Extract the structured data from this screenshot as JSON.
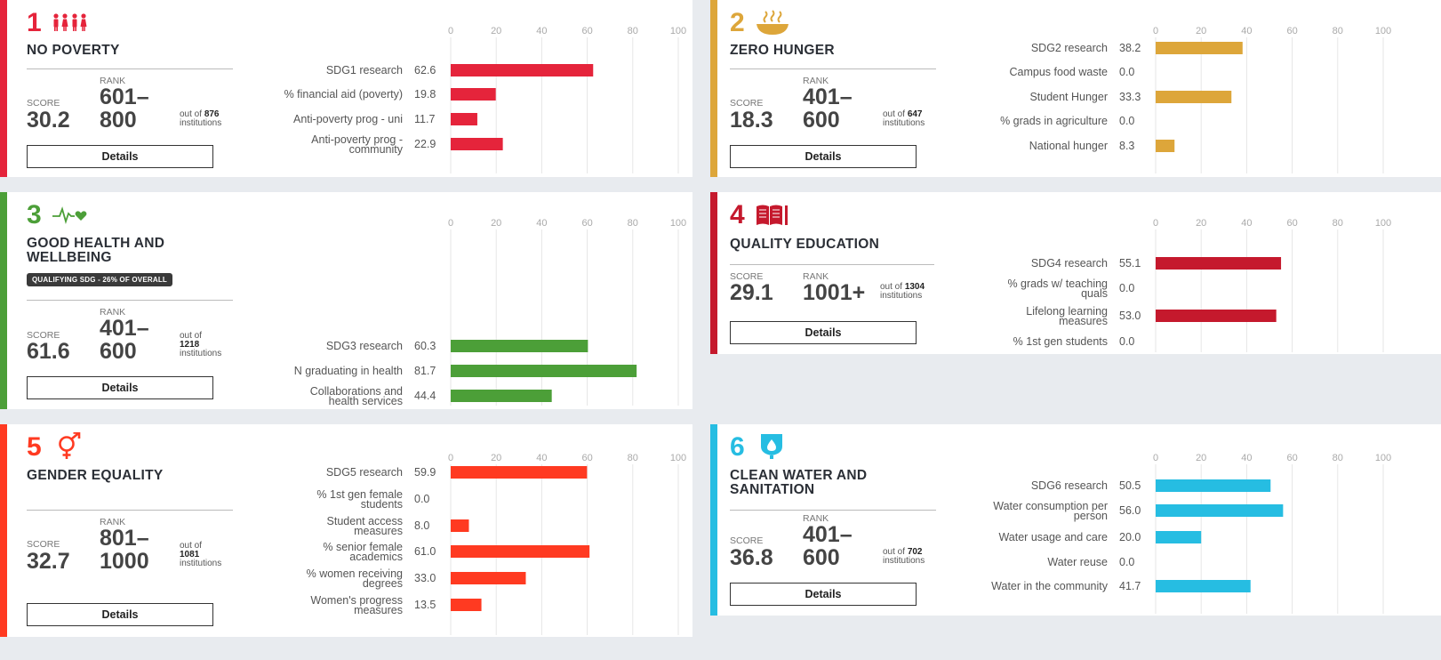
{
  "cards": [
    {
      "number": "1",
      "title_lines": [
        "NO POVERTY"
      ],
      "badge": "",
      "score_label": "SCORE",
      "score": "30.2",
      "rank_label": "RANK",
      "rank_lines": [
        "601–",
        "800"
      ],
      "outof_prefix": "out of",
      "outof_count": "876",
      "outof_suffix": "institutions",
      "details_label": "Details",
      "color": "#e5243b",
      "icon": "people-icon"
    },
    {
      "number": "2",
      "title_lines": [
        "ZERO HUNGER"
      ],
      "badge": "",
      "score_label": "SCORE",
      "score": "18.3",
      "rank_label": "RANK",
      "rank_lines": [
        "401–",
        "600"
      ],
      "outof_prefix": "out of",
      "outof_count": "647",
      "outof_suffix": "institutions",
      "details_label": "Details",
      "color": "#dda63a",
      "icon": "food-bowl-icon"
    },
    {
      "number": "3",
      "title_lines": [
        "GOOD HEALTH AND",
        "WELLBEING"
      ],
      "badge": "QUALIFYING SDG - 26% OF OVERALL",
      "score_label": "SCORE",
      "score": "61.6",
      "rank_label": "RANK",
      "rank_lines": [
        "401–",
        "600"
      ],
      "outof_prefix": "out of",
      "outof_count": "1218",
      "outof_suffix": "institutions",
      "details_label": "Details",
      "color": "#4c9f38",
      "icon": "heartbeat-icon"
    },
    {
      "number": "4",
      "title_lines": [
        "QUALITY EDUCATION"
      ],
      "badge": "",
      "score_label": "SCORE",
      "score": "29.1",
      "rank_label": "RANK",
      "rank_lines": [
        "1001+"
      ],
      "outof_prefix": "out of",
      "outof_count": "1304",
      "outof_suffix": "institutions",
      "details_label": "Details",
      "color": "#c5192d",
      "icon": "book-icon"
    },
    {
      "number": "5",
      "title_lines": [
        "GENDER EQUALITY"
      ],
      "badge": "",
      "score_label": "SCORE",
      "score": "32.7",
      "rank_label": "RANK",
      "rank_lines": [
        "801–",
        "1000"
      ],
      "outof_prefix": "out of",
      "outof_count": "1081",
      "outof_suffix": "institutions",
      "details_label": "Details",
      "color": "#ff3a21",
      "icon": "gender-icon"
    },
    {
      "number": "6",
      "title_lines": [
        "CLEAN WATER AND",
        "SANITATION"
      ],
      "badge": "",
      "score_label": "SCORE",
      "score": "36.8",
      "rank_label": "RANK",
      "rank_lines": [
        "401–",
        "600"
      ],
      "outof_prefix": "out of",
      "outof_count": "702",
      "outof_suffix": "institutions",
      "details_label": "Details",
      "color": "#26bde2",
      "icon": "water-drop-icon"
    }
  ],
  "chart_data": [
    {
      "type": "bar",
      "orientation": "horizontal",
      "title": "SDG 1 No Poverty",
      "xlim": [
        0,
        100
      ],
      "ticks": [
        0,
        20,
        40,
        60,
        80,
        100
      ],
      "grid": true,
      "color": "#e5243b",
      "categories": [
        [
          "SDG1 research"
        ],
        [
          "% financial aid (poverty)"
        ],
        [
          "Anti-poverty prog - uni"
        ],
        [
          "Anti-poverty prog -",
          "community"
        ]
      ],
      "labels": [
        "62.6",
        "19.8",
        "11.7",
        "22.9"
      ],
      "values": [
        62.6,
        19.8,
        11.7,
        22.9
      ]
    },
    {
      "type": "bar",
      "orientation": "horizontal",
      "title": "SDG 2 Zero Hunger",
      "xlim": [
        0,
        100
      ],
      "ticks": [
        0,
        20,
        40,
        60,
        80,
        100
      ],
      "grid": true,
      "color": "#dda63a",
      "categories": [
        [
          "SDG2 research"
        ],
        [
          "Campus food waste"
        ],
        [
          "Student Hunger"
        ],
        [
          "% grads in agriculture"
        ],
        [
          "National hunger"
        ]
      ],
      "labels": [
        "38.2",
        "0.0",
        "33.3",
        "0.0",
        "8.3"
      ],
      "values": [
        38.2,
        0.0,
        33.3,
        0.0,
        8.3
      ]
    },
    {
      "type": "bar",
      "orientation": "horizontal",
      "title": "SDG 3 Good Health and Wellbeing",
      "xlim": [
        0,
        100
      ],
      "ticks": [
        0,
        20,
        40,
        60,
        80,
        100
      ],
      "grid": true,
      "color": "#4c9f38",
      "categories": [
        [
          "SDG3 research"
        ],
        [
          "N graduating in health"
        ],
        [
          "Collaborations and",
          "health services"
        ]
      ],
      "labels": [
        "60.3",
        "81.7",
        "44.4"
      ],
      "values": [
        60.3,
        81.7,
        44.4
      ]
    },
    {
      "type": "bar",
      "orientation": "horizontal",
      "title": "SDG 4 Quality Education",
      "xlim": [
        0,
        100
      ],
      "ticks": [
        0,
        20,
        40,
        60,
        80,
        100
      ],
      "grid": true,
      "color": "#c5192d",
      "categories": [
        [
          "SDG4 research"
        ],
        [
          "% grads w/ teaching",
          "quals"
        ],
        [
          "Lifelong learning",
          "measures"
        ],
        [
          "% 1st gen students"
        ]
      ],
      "labels": [
        "55.1",
        "0.0",
        "53.0",
        "0.0"
      ],
      "values": [
        55.1,
        0.0,
        53.0,
        0.0
      ]
    },
    {
      "type": "bar",
      "orientation": "horizontal",
      "title": "SDG 5 Gender Equality",
      "xlim": [
        0,
        100
      ],
      "ticks": [
        0,
        20,
        40,
        60,
        80,
        100
      ],
      "grid": true,
      "color": "#ff3a21",
      "categories": [
        [
          "SDG5 research"
        ],
        [
          "% 1st gen female",
          "students"
        ],
        [
          "Student access",
          "measures"
        ],
        [
          "% senior female",
          "academics"
        ],
        [
          "% women receiving",
          "degrees"
        ],
        [
          "Women's progress",
          "measures"
        ]
      ],
      "labels": [
        "59.9",
        "0.0",
        "8.0",
        "61.0",
        "33.0",
        "13.5"
      ],
      "values": [
        59.9,
        0.0,
        8.0,
        61.0,
        33.0,
        13.5
      ]
    },
    {
      "type": "bar",
      "orientation": "horizontal",
      "title": "SDG 6 Clean Water and Sanitation",
      "xlim": [
        0,
        100
      ],
      "ticks": [
        0,
        20,
        40,
        60,
        80,
        100
      ],
      "grid": true,
      "color": "#26bde2",
      "categories": [
        [
          "SDG6 research"
        ],
        [
          "Water consumption per",
          "person"
        ],
        [
          "Water usage and care"
        ],
        [
          "Water reuse"
        ],
        [
          "Water in the community"
        ]
      ],
      "labels": [
        "50.5",
        "56.0",
        "20.0",
        "0.0",
        "41.7"
      ],
      "values": [
        50.5,
        56.0,
        20.0,
        0.0,
        41.7
      ]
    }
  ]
}
